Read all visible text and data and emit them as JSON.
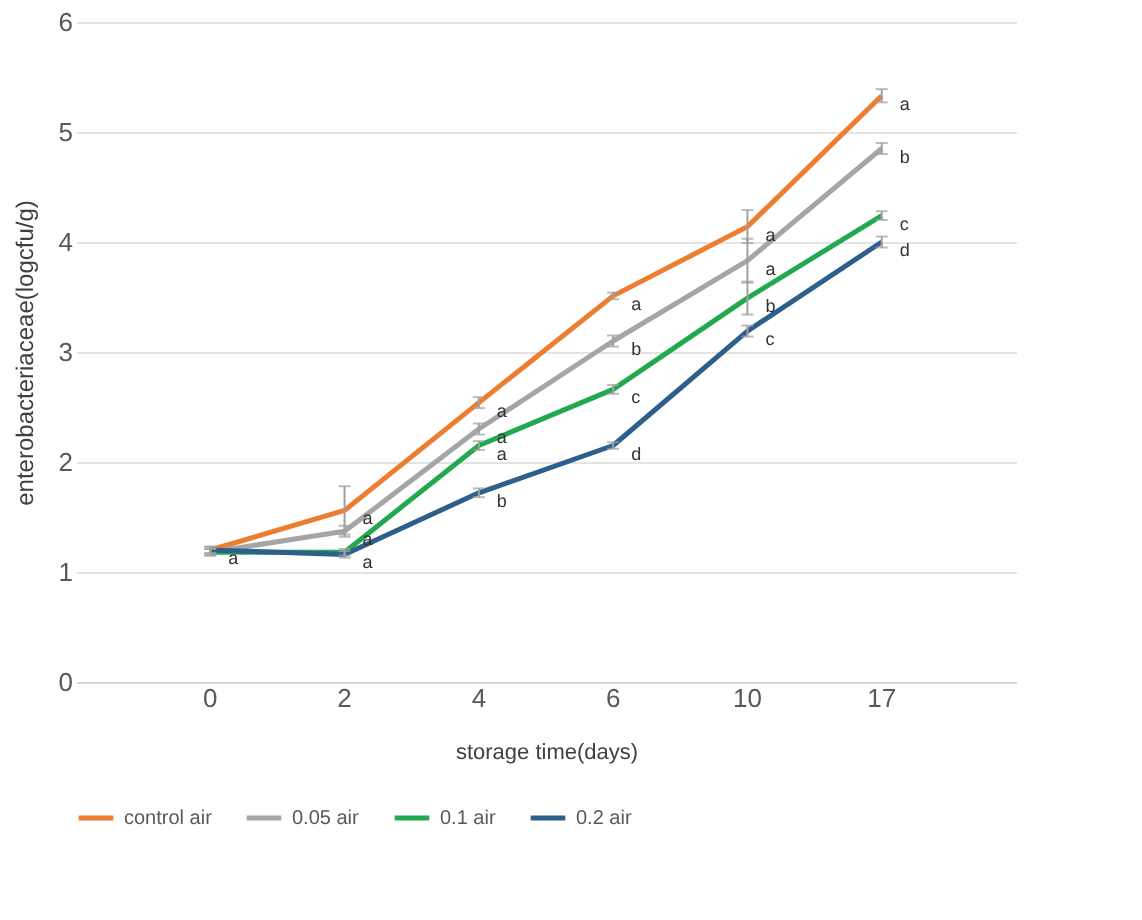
{
  "chart_data": {
    "type": "line",
    "xlabel": "storage time(days)",
    "ylabel": "enterobacteriaceae(logcfu/g)",
    "categories": [
      "0",
      "2",
      "4",
      "6",
      "10",
      "17"
    ],
    "ylim": [
      0,
      6
    ],
    "yticks": [
      0,
      1,
      2,
      3,
      4,
      5,
      6
    ],
    "grid": "y",
    "legend": "bottom",
    "marker": "none",
    "line_style": "solid",
    "series": [
      {
        "name": "control air",
        "color": "#ed7d31",
        "values": [
          1.2,
          1.56,
          2.54,
          3.51,
          4.14,
          5.33
        ],
        "errors": [
          0.03,
          0.22,
          0.05,
          0.03,
          0.15,
          0.06
        ],
        "value_labels": [
          null,
          "a",
          "a",
          "a",
          "a",
          "a"
        ]
      },
      {
        "name": "0.05 air",
        "color": "#a5a5a5",
        "values": [
          1.18,
          1.37,
          2.3,
          3.1,
          3.83,
          4.85
        ],
        "errors": [
          0.03,
          0.05,
          0.05,
          0.05,
          0.2,
          0.05
        ],
        "value_labels": [
          null,
          "a",
          "a",
          "b",
          "a",
          "b"
        ]
      },
      {
        "name": "0.1 air",
        "color": "#22a94f",
        "values": [
          1.18,
          1.18,
          2.15,
          2.66,
          3.49,
          4.24
        ],
        "errors": [
          0.03,
          0.03,
          0.04,
          0.04,
          0.15,
          0.04
        ],
        "value_labels": [
          null,
          null,
          "a",
          "c",
          "b",
          "c"
        ]
      },
      {
        "name": "0.2 air",
        "color": "#2e5f8a",
        "values": [
          1.2,
          1.16,
          1.72,
          2.15,
          3.19,
          4.0
        ],
        "errors": [
          0.03,
          0.03,
          0.04,
          0.03,
          0.05,
          0.05
        ],
        "value_labels": [
          "a",
          "a",
          "b",
          "d",
          "c",
          "d"
        ]
      }
    ]
  }
}
